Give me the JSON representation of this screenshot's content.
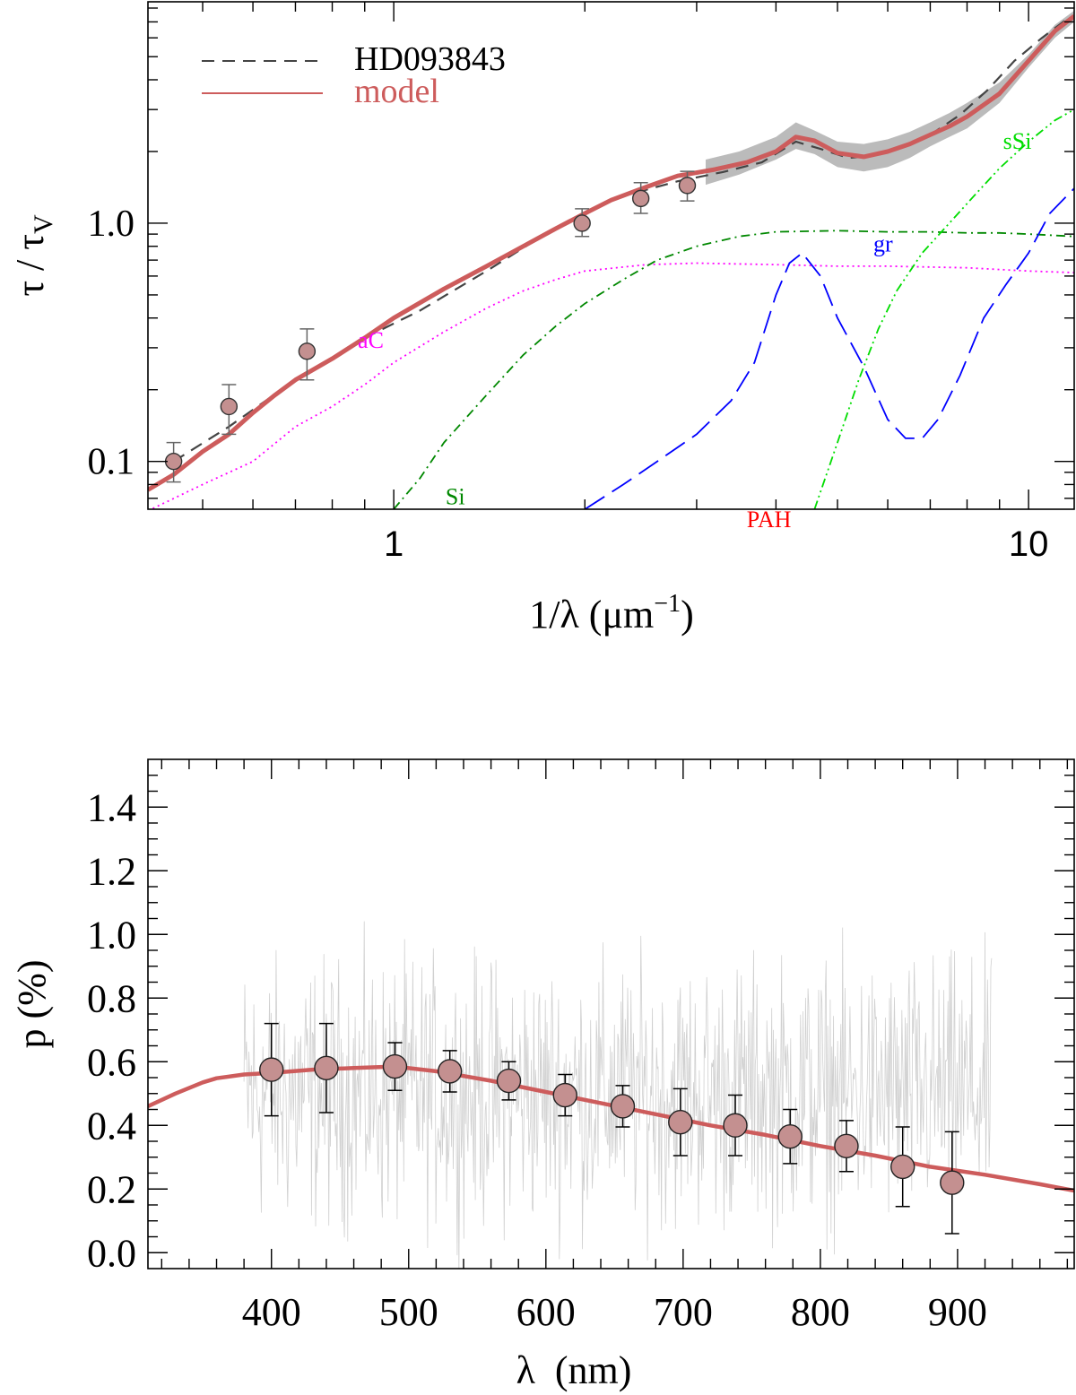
{
  "chart_data": [
    {
      "type": "line",
      "panel": "top",
      "xlabel_main": "1/λ (μm",
      "xlabel_sup": "−1",
      "xlabel_close": ")",
      "ylabel_main": "τ / τ",
      "ylabel_sub": "V",
      "x_scale": "log",
      "y_scale": "log",
      "xlim": [
        0.41,
        11.8
      ],
      "ylim": [
        0.063,
        8.5
      ],
      "x_tick_labels": [
        {
          "v": 1,
          "text": "1"
        },
        {
          "v": 10,
          "text": "10"
        }
      ],
      "y_tick_labels": [
        {
          "v": 0.1,
          "text": "0.1"
        },
        {
          "v": 1.0,
          "text": "1.0"
        }
      ],
      "legend": {
        "position": "top-left",
        "entries": [
          {
            "label": "HD093843",
            "style": "dashed",
            "color": "#444444"
          },
          {
            "label": "model",
            "style": "solid",
            "color": "#cd5c5c"
          }
        ]
      },
      "component_labels": [
        {
          "text": "aC",
          "x": 0.92,
          "y": 0.3,
          "color": "#ff00ff"
        },
        {
          "text": "Si",
          "x": 1.25,
          "y": 0.066,
          "color": "#008800"
        },
        {
          "text": "gr",
          "x": 5.9,
          "y": 0.76,
          "color": "#0000ff"
        },
        {
          "text": "sSi",
          "x": 9.6,
          "y": 2.05,
          "color": "#00dd00"
        },
        {
          "text": "PAH",
          "x": 3.9,
          "y": 0.053,
          "color": "#ff0000"
        }
      ],
      "observed_curve": {
        "name": "HD093843",
        "color": "#444444",
        "dash": "dashed",
        "x": [
          0.45,
          0.55,
          0.7,
          0.9,
          1.1,
          1.4,
          1.8,
          2.2,
          2.8,
          3.3,
          3.8,
          4.3,
          4.7,
          5.2,
          5.7,
          6.3,
          7.0,
          7.8,
          8.6,
          9.5,
          10.5,
          11.5
        ],
        "y": [
          0.1,
          0.14,
          0.22,
          0.33,
          0.43,
          0.63,
          0.96,
          1.26,
          1.5,
          1.64,
          1.8,
          2.2,
          2.05,
          1.88,
          1.92,
          2.1,
          2.35,
          2.85,
          3.6,
          4.8,
          6.0,
          7.2
        ]
      },
      "model_curve": {
        "name": "model",
        "color": "#cd5c5c",
        "x": [
          0.41,
          0.45,
          0.5,
          0.55,
          0.6,
          0.65,
          0.7,
          0.8,
          0.9,
          1.0,
          1.2,
          1.4,
          1.6,
          1.8,
          2.0,
          2.2,
          2.5,
          2.8,
          3.2,
          3.6,
          4.0,
          4.3,
          4.6,
          5.0,
          5.5,
          6.0,
          6.5,
          7.0,
          7.5,
          8.0,
          9.0,
          10.0,
          11.0,
          11.8
        ],
        "y": [
          0.076,
          0.088,
          0.11,
          0.13,
          0.16,
          0.19,
          0.22,
          0.27,
          0.33,
          0.4,
          0.53,
          0.66,
          0.8,
          0.95,
          1.1,
          1.25,
          1.42,
          1.58,
          1.68,
          1.8,
          2.0,
          2.3,
          2.22,
          1.97,
          1.9,
          2.0,
          2.15,
          2.35,
          2.55,
          2.8,
          3.5,
          4.8,
          6.4,
          7.4
        ]
      },
      "model_uncertainty_band": {
        "color": "#bbbbbb",
        "x": [
          3.1,
          3.5,
          4.0,
          4.3,
          4.6,
          5.0,
          5.5,
          6.0,
          6.5,
          7.0,
          7.5,
          8.0,
          9.0,
          10.0,
          11.0,
          11.8
        ],
        "y_low": [
          1.45,
          1.6,
          1.85,
          2.05,
          1.95,
          1.72,
          1.65,
          1.72,
          1.88,
          2.1,
          2.3,
          2.5,
          3.2,
          4.5,
          6.0,
          7.0
        ],
        "y_high": [
          1.85,
          2.0,
          2.3,
          2.65,
          2.45,
          2.2,
          2.15,
          2.25,
          2.42,
          2.65,
          2.9,
          3.2,
          3.9,
          5.1,
          6.8,
          7.8
        ]
      },
      "component_curves": [
        {
          "name": "aC",
          "color": "#ff00ff",
          "dash": "dotted",
          "x": [
            0.41,
            0.5,
            0.6,
            0.7,
            0.8,
            0.9,
            1.0,
            1.2,
            1.4,
            1.6,
            1.8,
            2.0,
            2.5,
            3.0,
            4.0,
            5.0,
            6.0,
            8.0,
            10.0,
            11.8
          ],
          "y": [
            0.062,
            0.08,
            0.1,
            0.14,
            0.17,
            0.21,
            0.26,
            0.35,
            0.44,
            0.52,
            0.58,
            0.63,
            0.67,
            0.68,
            0.67,
            0.66,
            0.66,
            0.65,
            0.63,
            0.62
          ]
        },
        {
          "name": "Si",
          "color": "#008800",
          "dash": "dashdot",
          "x": [
            1.0,
            1.1,
            1.2,
            1.4,
            1.6,
            1.8,
            2.0,
            2.3,
            2.6,
            3.0,
            3.5,
            4.0,
            5.0,
            6.0,
            7.0,
            8.0,
            9.0,
            10.0,
            11.8
          ],
          "y": [
            0.063,
            0.085,
            0.12,
            0.19,
            0.28,
            0.37,
            0.46,
            0.58,
            0.7,
            0.8,
            0.88,
            0.92,
            0.93,
            0.92,
            0.92,
            0.91,
            0.91,
            0.9,
            0.88
          ]
        },
        {
          "name": "gr",
          "color": "#0000ff",
          "dash": "longdash",
          "x": [
            2.0,
            2.3,
            2.6,
            3.0,
            3.4,
            3.7,
            4.0,
            4.2,
            4.4,
            4.7,
            5.0,
            5.5,
            6.0,
            6.4,
            6.8,
            7.2,
            7.8,
            8.5,
            9.2,
            10.0,
            10.8,
            11.8
          ],
          "y": [
            0.063,
            0.08,
            0.1,
            0.13,
            0.18,
            0.26,
            0.5,
            0.68,
            0.75,
            0.6,
            0.4,
            0.25,
            0.15,
            0.125,
            0.125,
            0.15,
            0.23,
            0.4,
            0.55,
            0.75,
            1.1,
            1.4
          ]
        },
        {
          "name": "sSi",
          "color": "#00dd00",
          "dash": "dashdotdot",
          "x": [
            4.6,
            5.0,
            5.4,
            5.8,
            6.2,
            6.8,
            7.5,
            8.2,
            9.0,
            10.0,
            11.0,
            11.8
          ],
          "y": [
            0.063,
            0.12,
            0.22,
            0.36,
            0.52,
            0.75,
            1.0,
            1.3,
            1.7,
            2.2,
            2.7,
            3.0
          ]
        }
      ],
      "data_points": {
        "color": "#c49090",
        "x": [
          0.45,
          0.55,
          0.73,
          1.98,
          2.45,
          2.9
        ],
        "y": [
          0.1,
          0.17,
          0.29,
          1.0,
          1.27,
          1.44
        ],
        "err_low": [
          0.082,
          0.13,
          0.22,
          0.88,
          1.1,
          1.24
        ],
        "err_high": [
          0.12,
          0.21,
          0.36,
          1.15,
          1.48,
          1.65
        ]
      }
    },
    {
      "type": "line",
      "panel": "bottom",
      "xlabel_main": "λ",
      "xlabel_unit": "(nm)",
      "ylabel": "p (%)",
      "xlim": [
        310,
        985
      ],
      "ylim": [
        -0.05,
        1.55
      ],
      "x_tick_labels": [
        "400",
        "500",
        "600",
        "700",
        "800",
        "900"
      ],
      "x_ticks": [
        400,
        500,
        600,
        700,
        800,
        900
      ],
      "y_tick_labels": [
        "0.0",
        "0.2",
        "0.4",
        "0.6",
        "0.8",
        "1.0",
        "1.2",
        "1.4"
      ],
      "y_ticks": [
        0.0,
        0.2,
        0.4,
        0.6,
        0.8,
        1.0,
        1.2,
        1.4
      ],
      "noisy_spectrum": {
        "color": "#d0d0d0",
        "x_range": [
          380,
          925
        ],
        "center": 0.5,
        "amplitude": 0.55
      },
      "model_curve": {
        "name": "model",
        "color": "#cd5c5c",
        "x": [
          310,
          330,
          350,
          360,
          380,
          400,
          430,
          460,
          490,
          520,
          560,
          600,
          640,
          680,
          720,
          760,
          800,
          840,
          880,
          920,
          960,
          985
        ],
        "y": [
          0.46,
          0.5,
          0.535,
          0.548,
          0.56,
          0.565,
          0.575,
          0.58,
          0.585,
          0.57,
          0.54,
          0.505,
          0.47,
          0.435,
          0.4,
          0.37,
          0.335,
          0.305,
          0.27,
          0.245,
          0.215,
          0.195
        ]
      },
      "data_points": {
        "color": "#c49090",
        "x": [
          400,
          440,
          490,
          530,
          573,
          614,
          656,
          698,
          738,
          778,
          819,
          860,
          896
        ],
        "y": [
          0.575,
          0.58,
          0.585,
          0.57,
          0.54,
          0.495,
          0.46,
          0.41,
          0.4,
          0.365,
          0.335,
          0.27,
          0.22
        ],
        "err": [
          0.145,
          0.14,
          0.075,
          0.065,
          0.06,
          0.065,
          0.065,
          0.105,
          0.095,
          0.085,
          0.08,
          0.125,
          0.16
        ]
      }
    }
  ]
}
